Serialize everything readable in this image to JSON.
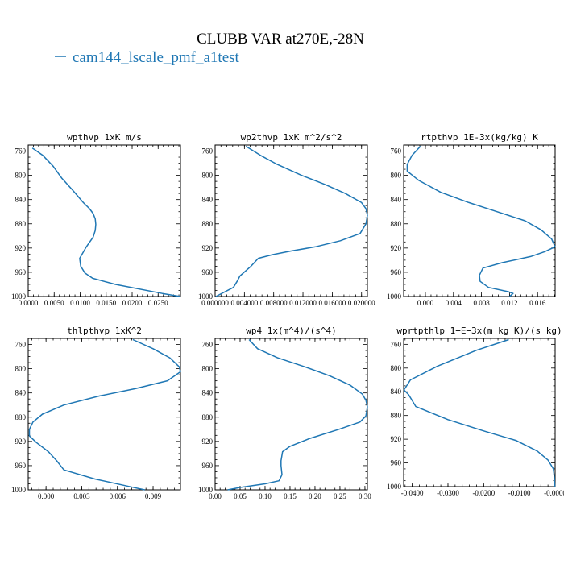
{
  "title": "CLUBB VAR at270E,-28N",
  "legend": {
    "label": "cam144_lscale_pmf_a1test",
    "color": "#1f77b4"
  },
  "chart_data": [
    {
      "type": "line",
      "title": "wpthvp   1xK m/s",
      "xlim": [
        0.0,
        0.0293
      ],
      "ylim": [
        1000,
        750
      ],
      "xticks": [
        0.0,
        0.005,
        0.01,
        0.015,
        0.02,
        0.025
      ],
      "xtick_labels": [
        "0.0000",
        "0.0050",
        "0.0100",
        "0.0150",
        "0.0200",
        "0.0250"
      ],
      "yticks": [
        760,
        800,
        840,
        880,
        920,
        960,
        1000
      ],
      "ytick_labels": [
        "760",
        "800",
        "840",
        "880",
        "920",
        "960",
        "1000"
      ],
      "series": [
        {
          "color": "#1f77b4",
          "x": [
            0.0008,
            0.0028,
            0.0048,
            0.0065,
            0.0086,
            0.0106,
            0.0118,
            0.0125,
            0.0129,
            0.013,
            0.0129,
            0.0125,
            0.0112,
            0.0099,
            0.0101,
            0.0109,
            0.0124,
            0.0168,
            0.0258,
            0.0293
          ],
          "y": [
            755,
            767,
            785,
            805,
            825,
            845,
            855,
            863,
            872,
            881,
            891,
            902,
            918,
            937,
            950,
            961,
            970,
            980,
            995,
            1000
          ]
        }
      ]
    },
    {
      "type": "line",
      "title": "wp2thvp   1xK m^2/s^2",
      "xlim": [
        0.0,
        0.0208
      ],
      "ylim": [
        1000,
        750
      ],
      "xticks": [
        0.0,
        0.004,
        0.008,
        0.012,
        0.016,
        0.02
      ],
      "xtick_labels": [
        "0.000000",
        "0.004000",
        "0.008000",
        "0.012000",
        "0.016000",
        "0.020000"
      ],
      "yticks": [
        760,
        800,
        840,
        880,
        920,
        960,
        1000
      ],
      "ytick_labels": [
        "760",
        "800",
        "840",
        "880",
        "920",
        "960",
        "1000"
      ],
      "series": [
        {
          "color": "#1f77b4",
          "x": [
            0.0042,
            0.0062,
            0.0085,
            0.0118,
            0.015,
            0.0178,
            0.02,
            0.0206,
            0.0208,
            0.0206,
            0.0198,
            0.0171,
            0.0137,
            0.0103,
            0.0078,
            0.0059,
            0.0049,
            0.0034,
            0.003,
            0.0025,
            0.0001
          ],
          "y": [
            752,
            767,
            782,
            800,
            815,
            830,
            845,
            855,
            866,
            880,
            896,
            908,
            918,
            925,
            931,
            937,
            950,
            966,
            975,
            985,
            1000
          ]
        }
      ]
    },
    {
      "type": "line",
      "title": "rtpthvp   1E-3x(kg/kg) K",
      "xlim": [
        -0.0031,
        0.0185
      ],
      "ylim": [
        1000,
        750
      ],
      "xticks": [
        0.0,
        0.004,
        0.008,
        0.012,
        0.016
      ],
      "xtick_labels": [
        "0.000",
        "0.004",
        "0.008",
        "0.012",
        "0.016"
      ],
      "yticks": [
        760,
        800,
        840,
        880,
        920,
        960,
        1000
      ],
      "ytick_labels": [
        "760",
        "800",
        "840",
        "880",
        "920",
        "960",
        "1000"
      ],
      "series": [
        {
          "color": "#1f77b4",
          "x": [
            -0.0007,
            -0.0019,
            -0.0026,
            -0.0026,
            -0.001,
            0.0022,
            0.0062,
            0.0102,
            0.0142,
            0.0165,
            0.018,
            0.0185,
            0.017,
            0.015,
            0.011,
            0.0082,
            0.0077,
            0.0078,
            0.009,
            0.0118,
            0.0125,
            0.012
          ],
          "y": [
            752,
            767,
            782,
            793,
            808,
            828,
            845,
            860,
            875,
            890,
            905,
            918,
            926,
            934,
            944,
            953,
            965,
            975,
            985,
            992,
            995,
            1000
          ]
        }
      ]
    },
    {
      "type": "line",
      "title": "thlpthvp   1xK^2",
      "xlim": [
        -0.0015,
        0.0113
      ],
      "ylim": [
        1000,
        750
      ],
      "xticks": [
        0.0,
        0.003,
        0.006,
        0.009
      ],
      "xtick_labels": [
        "0.000",
        "0.003",
        "0.006",
        "0.009"
      ],
      "yticks": [
        760,
        800,
        840,
        880,
        920,
        960,
        1000
      ],
      "ytick_labels": [
        "760",
        "800",
        "840",
        "880",
        "920",
        "960",
        "1000"
      ],
      "series": [
        {
          "color": "#1f77b4",
          "x": [
            0.0073,
            0.009,
            0.0104,
            0.0112,
            0.0113,
            0.0102,
            0.0075,
            0.0045,
            0.0015,
            -0.0003,
            -0.0011,
            -0.0014,
            -0.0014,
            -0.0008,
            0.0002,
            0.0009,
            0.0015,
            0.0041,
            0.0071,
            0.0083
          ],
          "y": [
            752,
            767,
            782,
            797,
            805,
            820,
            833,
            845,
            860,
            875,
            888,
            900,
            911,
            922,
            937,
            952,
            967,
            982,
            995,
            1000
          ]
        }
      ]
    },
    {
      "type": "line",
      "title": "wp4   1x(m^4)/(s^4)",
      "xlim": [
        0.0,
        0.305
      ],
      "ylim": [
        1000,
        750
      ],
      "xticks": [
        0.0,
        0.05,
        0.1,
        0.15,
        0.2,
        0.25,
        0.3
      ],
      "xtick_labels": [
        "0.00",
        "0.05",
        "0.10",
        "0.15",
        "0.20",
        "0.25",
        "0.30"
      ],
      "yticks": [
        760,
        800,
        840,
        880,
        920,
        960,
        1000
      ],
      "ytick_labels": [
        "760",
        "800",
        "840",
        "880",
        "920",
        "960",
        "1000"
      ],
      "series": [
        {
          "color": "#1f77b4",
          "x": [
            0.068,
            0.085,
            0.125,
            0.18,
            0.23,
            0.27,
            0.295,
            0.302,
            0.305,
            0.302,
            0.29,
            0.248,
            0.19,
            0.15,
            0.135,
            0.132,
            0.132,
            0.134,
            0.128,
            0.1,
            0.05,
            0.025
          ],
          "y": [
            752,
            767,
            782,
            797,
            812,
            827,
            842,
            852,
            863,
            878,
            888,
            900,
            915,
            928,
            937,
            952,
            960,
            975,
            985,
            990,
            996,
            1000
          ]
        }
      ]
    },
    {
      "type": "line",
      "title": "wprtpthlp   1−E−3x(m kg K)/(s kg)",
      "xlim": [
        -0.0424,
        0.0
      ],
      "ylim": [
        1000,
        750
      ],
      "xticks": [
        -0.04,
        -0.03,
        -0.02,
        -0.01,
        0.0
      ],
      "xtick_labels": [
        "-0.0400",
        "-0.0300",
        "-0.0200",
        "-0.0100",
        "-0.0000"
      ],
      "yticks": [
        760,
        800,
        840,
        880,
        920,
        960,
        1000
      ],
      "ytick_labels": [
        "760",
        "800",
        "840",
        "880",
        "920",
        "960",
        "1000"
      ],
      "series": [
        {
          "color": "#1f77b4",
          "x": [
            -0.013,
            -0.022,
            -0.033,
            -0.0405,
            -0.0423,
            -0.041,
            -0.039,
            -0.03,
            -0.02,
            -0.011,
            -0.005,
            -0.002,
            -0.0005,
            -0.0002,
            -0.0001
          ],
          "y": [
            752,
            770,
            797,
            820,
            837,
            845,
            865,
            887,
            906,
            922,
            940,
            955,
            970,
            985,
            1000
          ]
        }
      ]
    }
  ]
}
